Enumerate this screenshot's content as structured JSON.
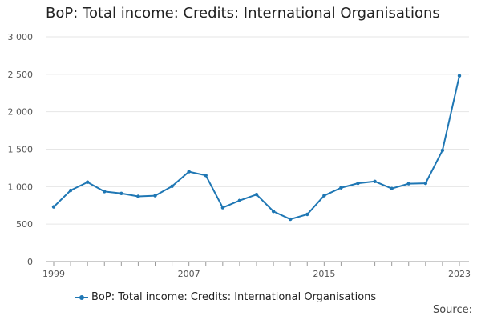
{
  "colors": {
    "series": "#1f77b4",
    "grid": "#e6e6e6",
    "axis": "#999999",
    "text": "#222222",
    "tick_text": "#555555"
  },
  "chart_data": {
    "type": "line",
    "title": "BoP: Total income: Credits: International Organisations",
    "xlabel": "",
    "ylabel": "",
    "x": [
      1999,
      2000,
      2001,
      2002,
      2003,
      2004,
      2005,
      2006,
      2007,
      2008,
      2009,
      2010,
      2011,
      2012,
      2013,
      2014,
      2015,
      2016,
      2017,
      2018,
      2019,
      2020,
      2021,
      2022,
      2023
    ],
    "series": [
      {
        "name": "BoP: Total income: Credits: International Organisations",
        "values": [
          730,
          950,
          1060,
          935,
          910,
          870,
          880,
          1005,
          1200,
          1150,
          720,
          815,
          895,
          670,
          565,
          630,
          880,
          985,
          1045,
          1070,
          975,
          1040,
          1045,
          1485,
          2480
        ]
      }
    ],
    "x_ticks": [
      "1999",
      "2007",
      "2015",
      "2023"
    ],
    "y_ticks": [
      "0",
      "500",
      "1 000",
      "1 500",
      "2 000",
      "2 500",
      "3 000"
    ],
    "ylim": [
      0,
      3000
    ],
    "xlim": [
      1999,
      2023
    ],
    "grid": "horizontal",
    "legend_position": "bottom"
  },
  "footer": {
    "source_label": "Source:"
  }
}
